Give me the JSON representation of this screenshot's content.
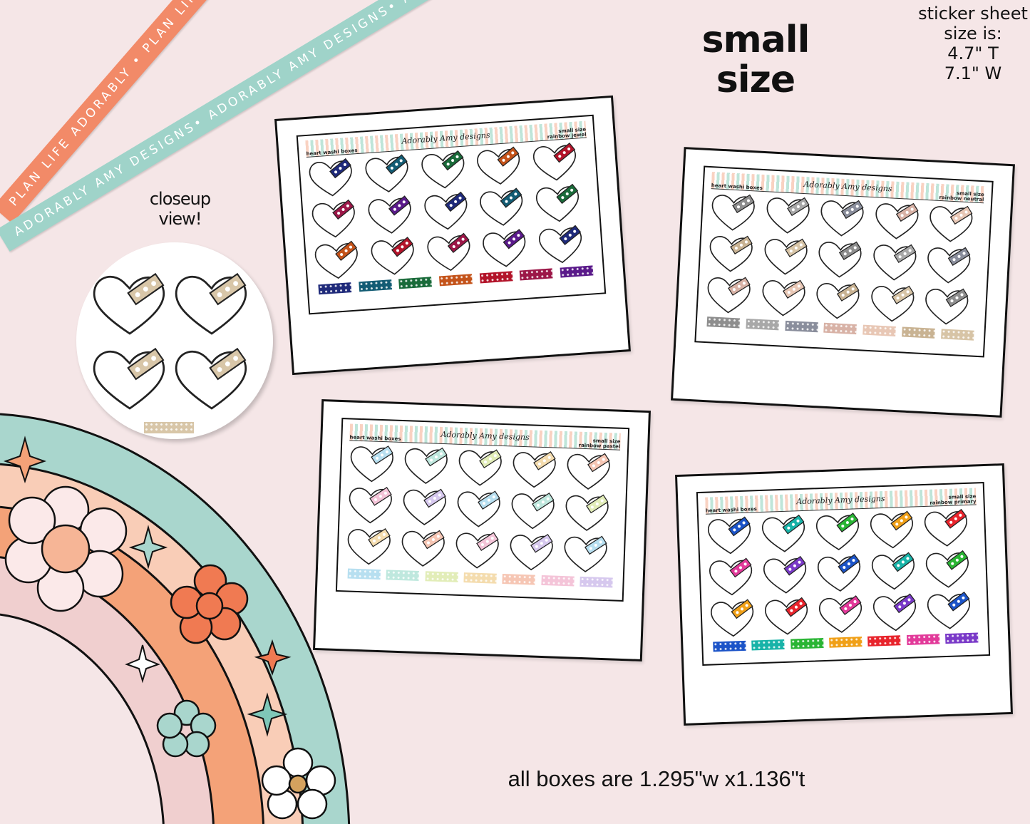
{
  "ribbons": [
    {
      "text": "PLAN LIFE ADORABLY • PLAN LIFE ADORABLY • PLAN LIFE ADORABLY",
      "color": "#f28a68"
    },
    {
      "text": "ADORABLY AMY DESIGNS• ADORABLY AMY DESIGNS• ADORABLY AMY DESIGNS",
      "color": "#9fd3c9"
    }
  ],
  "title": {
    "line1": "small",
    "line2": "size"
  },
  "sheet_size": {
    "l1": "sticker sheet",
    "l2": "size is:",
    "l3": "4.7\" T",
    "l4": "7.1\" W"
  },
  "closeup": {
    "l1": "closeup",
    "l2": "view!"
  },
  "footer": "all boxes are 1.295\"w x1.136\"t",
  "sheets": [
    {
      "title": "heart washi boxes",
      "logo": "Adorably Amy designs",
      "size": "small size",
      "variant": "rainbow jewel",
      "colors": [
        "#1f2a7a",
        "#135c74",
        "#1a6b3a",
        "#c4531a",
        "#b3142a",
        "#9c1748",
        "#5a1a8a"
      ]
    },
    {
      "title": "heart washi boxes",
      "logo": "Adorably Amy designs",
      "size": "small size",
      "variant": "rainbow neutral",
      "colors": [
        "#8e8e8e",
        "#a8a8a8",
        "#8a8e9c",
        "#d8b2a6",
        "#e8c7b5",
        "#c9b393",
        "#d7c4a6"
      ]
    },
    {
      "title": "heart washi boxes",
      "logo": "Adorably Amy designs",
      "size": "small size",
      "variant": "rainbow pastel",
      "colors": [
        "#b7dff0",
        "#bfe8de",
        "#e2edb8",
        "#f4dcae",
        "#f6c6b4",
        "#f4c4d8",
        "#d6c8ee"
      ]
    },
    {
      "title": "heart washi boxes",
      "logo": "Adorably Amy designs",
      "size": "small size",
      "variant": "rainbow primary",
      "colors": [
        "#1c54c8",
        "#18b3a8",
        "#2ab534",
        "#f0a018",
        "#e8242c",
        "#e23a9a",
        "#7a3ac8"
      ]
    }
  ],
  "closeup_color": "#d8c6a8"
}
